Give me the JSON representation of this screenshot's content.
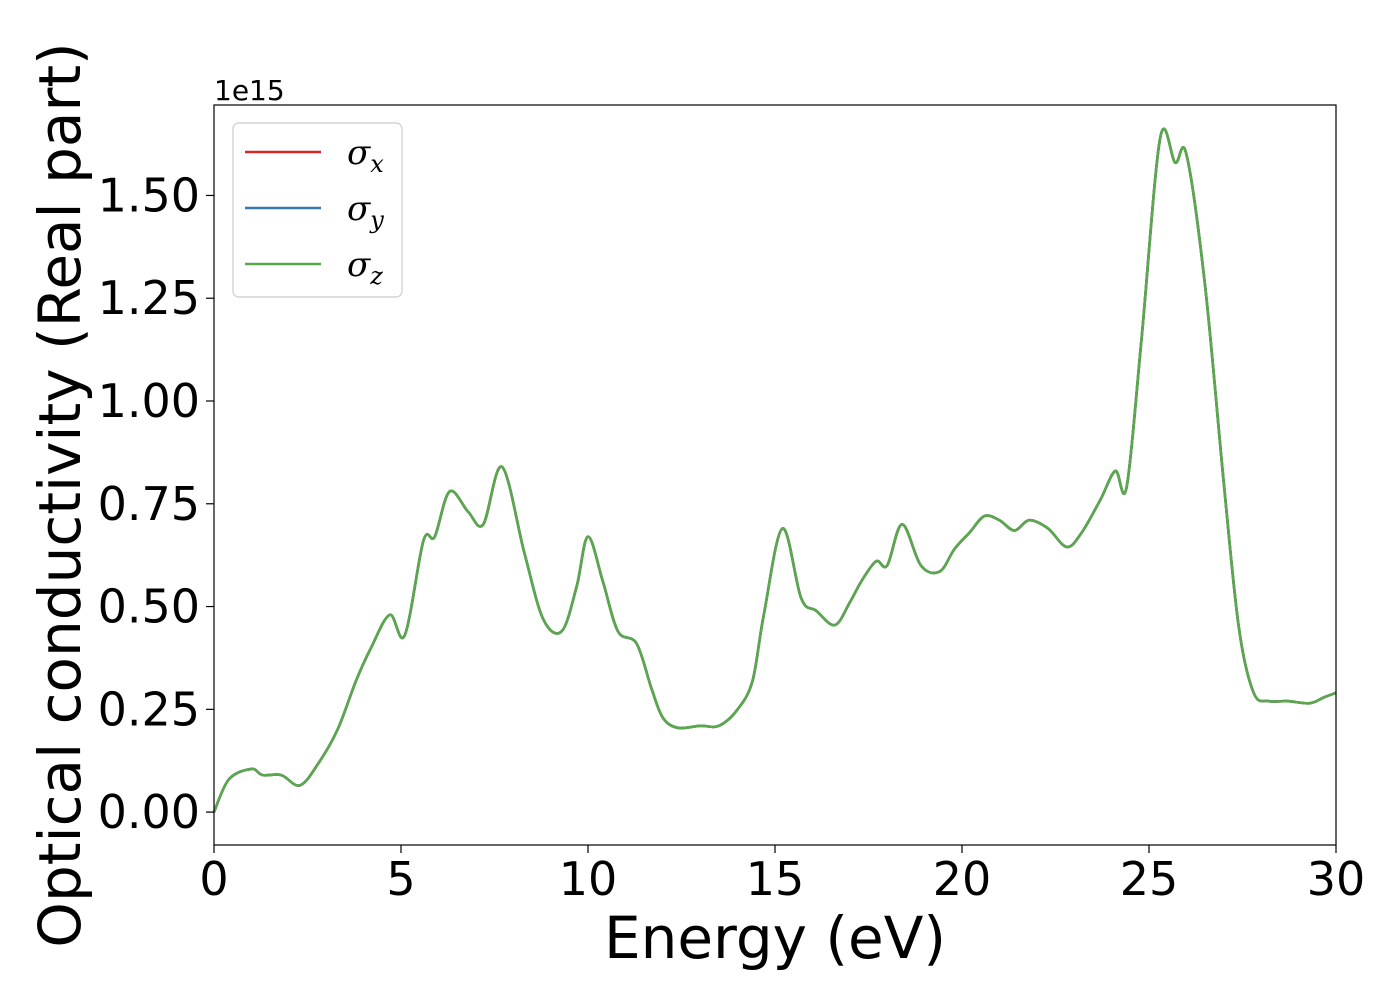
{
  "chart_data": {
    "type": "line",
    "xlabel": "Energy (eV)",
    "ylabel": "Optical conductivity (Real part)",
    "y_offset_label": "1e15",
    "xlim": [
      0,
      30
    ],
    "ylim": [
      -0.08,
      1.72
    ],
    "x_ticks": [
      "0",
      "5",
      "10",
      "15",
      "20",
      "25",
      "30"
    ],
    "y_ticks": [
      "0.00",
      "0.25",
      "0.50",
      "0.75",
      "1.00",
      "1.25",
      "1.50"
    ],
    "grid": false,
    "legend_position": "top-left",
    "series": [
      {
        "name": "σx",
        "base": "σ",
        "sub": "x",
        "color": "#d62728"
      },
      {
        "name": "σy",
        "base": "σ",
        "sub": "y",
        "color": "#3a78b5"
      },
      {
        "name": "σz",
        "base": "σ",
        "sub": "z",
        "color": "#59a84b"
      }
    ],
    "x": [
      0,
      0.4,
      1.0,
      1.3,
      1.8,
      2.3,
      2.8,
      3.3,
      3.8,
      4.2,
      4.7,
      5.1,
      5.6,
      5.9,
      6.3,
      6.8,
      7.2,
      7.7,
      8.3,
      8.8,
      9.3,
      9.7,
      10.0,
      10.4,
      10.8,
      11.3,
      11.7,
      12.0,
      12.4,
      13.0,
      13.5,
      14.0,
      14.4,
      14.7,
      15.2,
      15.7,
      16.1,
      16.6,
      17.0,
      17.3,
      17.7,
      18.0,
      18.4,
      18.9,
      19.4,
      19.8,
      20.2,
      20.6,
      21.0,
      21.4,
      21.8,
      22.3,
      22.8,
      23.2,
      23.7,
      24.1,
      24.4,
      24.8,
      25.3,
      25.7,
      26.0,
      26.5,
      27.0,
      27.4,
      27.8,
      28.2,
      28.7,
      29.3,
      29.7,
      30.0
    ],
    "y": [
      0.0,
      0.08,
      0.105,
      0.09,
      0.09,
      0.065,
      0.12,
      0.2,
      0.32,
      0.4,
      0.48,
      0.43,
      0.66,
      0.67,
      0.78,
      0.73,
      0.7,
      0.84,
      0.63,
      0.47,
      0.44,
      0.55,
      0.67,
      0.56,
      0.44,
      0.41,
      0.3,
      0.23,
      0.205,
      0.21,
      0.21,
      0.25,
      0.32,
      0.48,
      0.69,
      0.52,
      0.49,
      0.455,
      0.51,
      0.56,
      0.61,
      0.6,
      0.7,
      0.6,
      0.585,
      0.64,
      0.68,
      0.72,
      0.71,
      0.685,
      0.71,
      0.69,
      0.645,
      0.68,
      0.76,
      0.83,
      0.79,
      1.15,
      1.64,
      1.58,
      1.6,
      1.28,
      0.8,
      0.45,
      0.29,
      0.27,
      0.27,
      0.265,
      0.28,
      0.29
    ]
  }
}
